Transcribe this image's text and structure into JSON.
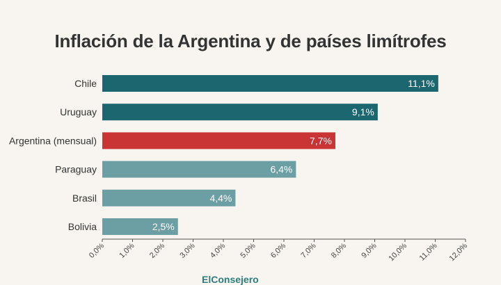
{
  "chart_data": {
    "type": "bar",
    "orientation": "horizontal",
    "title": "Inflación de la Argentina y de países limítrofes",
    "xlabel": "",
    "ylabel": "",
    "categories": [
      "Chile",
      "Uruguay",
      "Argentina (mensual)",
      "Paraguay",
      "Brasil",
      "Bolivia"
    ],
    "values": [
      11.1,
      9.1,
      7.7,
      6.4,
      4.4,
      2.5
    ],
    "value_labels": [
      "11,1%",
      "9,1%",
      "7,7%",
      "6,4%",
      "4,4%",
      "2,5%"
    ],
    "bar_colors": [
      "#1c6670",
      "#1c6670",
      "#c93434",
      "#6c9fa4",
      "#6c9fa4",
      "#6c9fa4"
    ],
    "xlim": [
      0,
      12
    ],
    "xticks": [
      0,
      1,
      2,
      3,
      4,
      5,
      6,
      7,
      8,
      9,
      10,
      11,
      12
    ],
    "xtick_labels": [
      "0,0%",
      "1,0%",
      "2,0%",
      "3,0%",
      "4,0%",
      "5,0%",
      "6,0%",
      "7,0%",
      "8,0%",
      "9,0%",
      "10,0%",
      "11,0%",
      "12,0%"
    ],
    "grid": false,
    "legend": "none"
  },
  "brand": {
    "text": "ElConsejero",
    "color": "#2e7d7a"
  }
}
